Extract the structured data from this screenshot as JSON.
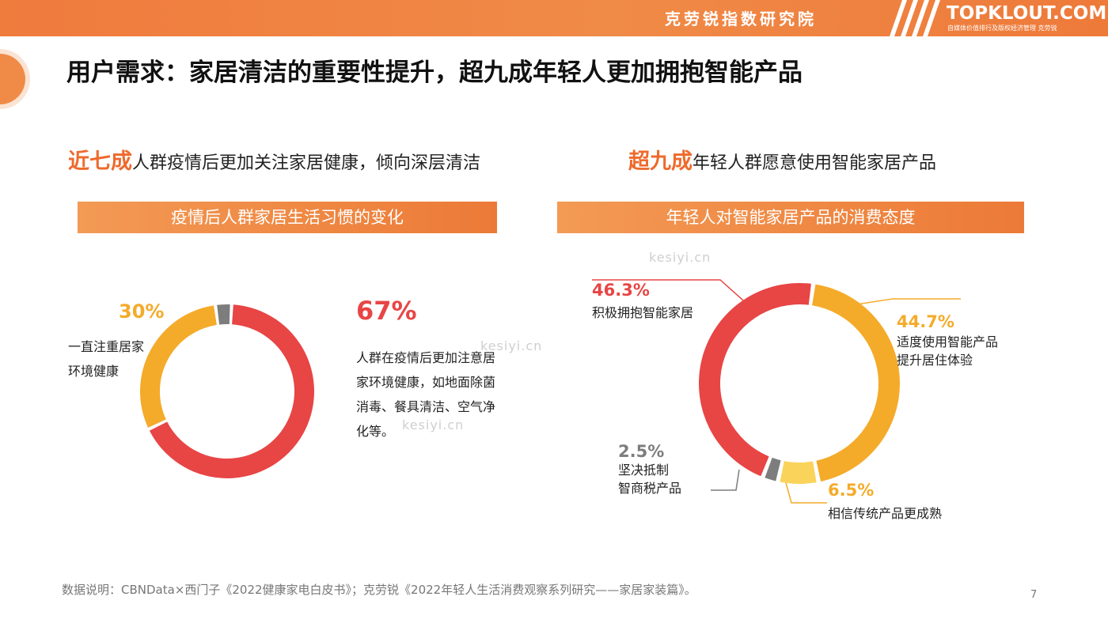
{
  "header": {
    "brand_cn": "克劳锐指数研究院",
    "logo_en": "TOPKLOUT.COM",
    "logo_sub": "自媒体价值排行及版权经济管理 克劳锐"
  },
  "page_title": "用户需求：家居清洁的重要性提升，超九成年轻人更加拥抱智能产品",
  "left": {
    "headline_highlight": "近七成",
    "headline_rest": "人群疫情后更加关注家居健康，倾向深层清洁",
    "banner": "疫情后人群家居生活习惯的变化",
    "seg_a_pct": "67%",
    "seg_a_text": [
      "人群在疫情后更加注意居",
      "家环境健康，如地面除菌",
      "消毒、餐具清洁、空气净",
      "化等。"
    ],
    "seg_b_pct": "30%",
    "seg_b_text": [
      "一直注重居家",
      "环境健康"
    ]
  },
  "right": {
    "headline_highlight": "超九成",
    "headline_rest": "年轻人群愿意使用智能家居产品",
    "banner": "年轻人对智能家居产品的消费态度",
    "s1_pct": "46.3%",
    "s1_text": "积极拥抱智能家居",
    "s2_pct": "44.7%",
    "s2_text": [
      "适度使用智能产品",
      "提升居住体验"
    ],
    "s3_pct": "6.5%",
    "s3_text": "相信传统产品更成熟",
    "s4_pct": "2.5%",
    "s4_text": [
      "坚决抵制",
      "智商税产品"
    ]
  },
  "watermarks": [
    "kesiyi.cn",
    "kesiyi.cn",
    "kesiyi.cn"
  ],
  "footer": "数据说明：CBNData×西门子《2022健康家电白皮书》；克劳锐《2022年轻人生活消费观察系列研究——家居家装篇》。",
  "page_number": "7",
  "colors": {
    "orange": "#ee7a3a",
    "red": "#e84545",
    "yellow": "#f4ab2a",
    "light_yellow": "#fad35a",
    "gray": "#7d7d7d"
  },
  "chart_data": [
    {
      "type": "pie",
      "title": "疫情后人群家居生活习惯的变化",
      "donut": true,
      "slices": [
        {
          "label": "人群在疫情后更加注意居家环境健康，如地面除菌消毒、餐具清洁、空气净化等。",
          "value": 67,
          "color": "#e84545"
        },
        {
          "label": "一直注重居家环境健康",
          "value": 30,
          "color": "#f4ab2a"
        },
        {
          "label": "",
          "value": 3,
          "color": "#7d7d7d"
        }
      ]
    },
    {
      "type": "pie",
      "title": "年轻人对智能家居产品的消费态度",
      "donut": true,
      "slices": [
        {
          "label": "积极拥抱智能家居",
          "value": 46.3,
          "color": "#e84545"
        },
        {
          "label": "适度使用智能产品提升居住体验",
          "value": 44.7,
          "color": "#f4ab2a"
        },
        {
          "label": "相信传统产品更成熟",
          "value": 6.5,
          "color": "#fad35a"
        },
        {
          "label": "坚决抵制智商税产品",
          "value": 2.5,
          "color": "#7d7d7d"
        }
      ]
    }
  ]
}
